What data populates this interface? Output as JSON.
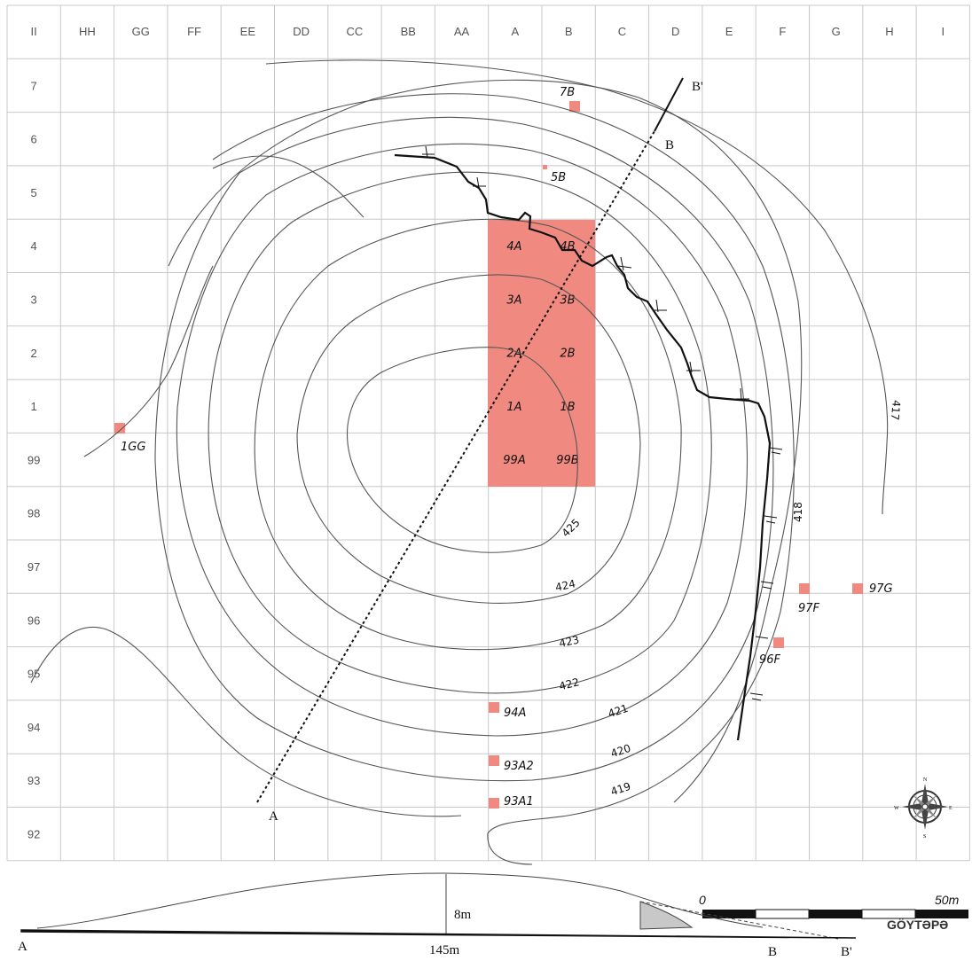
{
  "grid": {
    "columns": [
      "II",
      "HH",
      "GG",
      "FF",
      "EE",
      "DD",
      "CC",
      "BB",
      "AA",
      "A",
      "B",
      "C",
      "D",
      "E",
      "F",
      "G",
      "H",
      "I"
    ],
    "rows": [
      "7",
      "6",
      "5",
      "4",
      "3",
      "2",
      "1",
      "99",
      "98",
      "97",
      "96",
      "95",
      "94",
      "93",
      "92"
    ]
  },
  "excavation_block": [
    "4A",
    "4B",
    "3A",
    "3B",
    "2A",
    "2B",
    "1A",
    "1B",
    "99A",
    "99B"
  ],
  "trenches": {
    "t7B": "7B",
    "t5B": "5B",
    "t1GG": "1GG",
    "t97F": "97F",
    "t97G": "97G",
    "t96F": "96F",
    "t94A": "94A",
    "t93A2": "93A2",
    "t93A1": "93A1"
  },
  "contours": {
    "c425": "425",
    "c424": "424",
    "c423": "423",
    "c422": "422",
    "c421": "421",
    "c420": "420",
    "c419": "419",
    "c418": "418",
    "c417": "417"
  },
  "section_line": {
    "a": "A",
    "b": "B",
    "b_prime": "B'"
  },
  "scale": {
    "start": "0",
    "end": "50m"
  },
  "profile": {
    "height": "8m",
    "length": "145m",
    "a": "A",
    "b": "B",
    "b_prime": "B'"
  },
  "site_name": "GÖYTƏPƏ",
  "compass": {
    "n": "N",
    "s": "S",
    "e": "E",
    "w": "W"
  },
  "colors": {
    "trench_fill": "#f08a80",
    "grid": "#c8c8c8",
    "contour": "#555555",
    "wall": "#111111"
  }
}
